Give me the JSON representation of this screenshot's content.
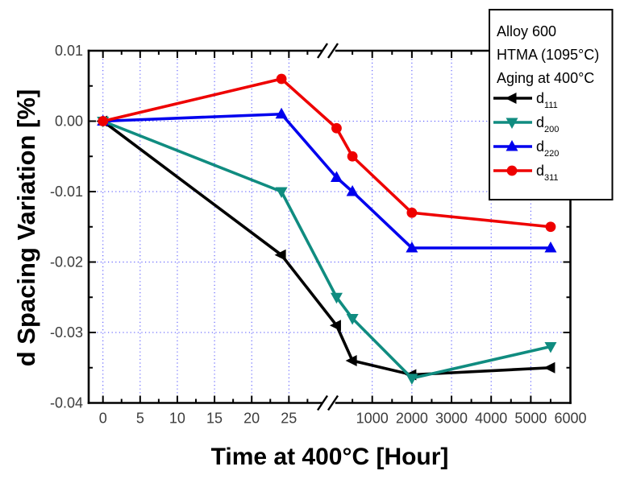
{
  "figure": {
    "background": "#ffffff",
    "frame_color": "#000000",
    "tick_label_color": "#3d3d3d"
  },
  "chart_data": {
    "type": "line",
    "title": "",
    "xlabel": "Time at 400°C [Hour]",
    "ylabel": "d Spacing Variation [%]",
    "grid": {
      "show": true,
      "color": "#3333ff",
      "style": "dotted"
    },
    "x_axis": {
      "broken": true,
      "break_between_values": [
        29,
        110
      ],
      "left_segment": {
        "range": [
          -2,
          29.4
        ],
        "major_ticks": [
          0,
          5,
          10,
          15,
          20,
          25
        ],
        "tick_labels": [
          "0",
          "5",
          "10",
          "15",
          "20",
          "25"
        ],
        "minor_ticks": [
          2.5,
          7.5,
          12.5,
          17.5,
          22.5,
          27.5
        ]
      },
      "right_segment": {
        "range": [
          110,
          6000
        ],
        "major_ticks": [
          1000,
          2000,
          3000,
          4000,
          5000,
          6000
        ],
        "tick_labels": [
          "1000",
          "2000",
          "3000",
          "4000",
          "5000",
          "6000"
        ],
        "minor_ticks": [
          500,
          1500,
          2500,
          3500,
          4500,
          5500
        ]
      }
    },
    "y_axis": {
      "range": [
        -0.04,
        0.01
      ],
      "major_ticks": [
        0.01,
        0.0,
        -0.01,
        -0.02,
        -0.03,
        -0.04
      ],
      "tick_labels": [
        "0.01",
        "0.00",
        "-0.01",
        "-0.02",
        "-0.03",
        "-0.04"
      ],
      "minor_ticks": [
        0.005,
        -0.005,
        -0.015,
        -0.025,
        -0.035
      ],
      "gridline_values": [
        0.0,
        -0.01,
        -0.02,
        -0.03
      ]
    },
    "x": [
      0,
      24,
      100,
      500,
      2000,
      5500
    ],
    "series": [
      {
        "name": "d111",
        "label_base": "d",
        "label_sub": "111",
        "color": "#000000",
        "marker": "triangle-left",
        "values": [
          0.0,
          -0.019,
          -0.029,
          -0.034,
          -0.036,
          -0.035
        ]
      },
      {
        "name": "d200",
        "label_base": "d",
        "label_sub": "200",
        "color": "#108c80",
        "marker": "triangle-down",
        "values": [
          0.0,
          -0.01,
          -0.025,
          -0.028,
          -0.0365,
          -0.032
        ]
      },
      {
        "name": "d220",
        "label_base": "d",
        "label_sub": "220",
        "color": "#0000ee",
        "marker": "triangle-up",
        "values": [
          0.0,
          0.001,
          -0.008,
          -0.01,
          -0.018,
          -0.018
        ]
      },
      {
        "name": "d311",
        "label_base": "d",
        "label_sub": "311",
        "color": "#ee0000",
        "marker": "circle",
        "values": [
          0.0,
          0.006,
          -0.001,
          -0.005,
          -0.013,
          -0.015
        ]
      }
    ],
    "legend": {
      "position": "top-right",
      "header_lines": [
        "Alloy 600",
        "HTMA (1095°C)",
        "Aging at 400°C"
      ],
      "border_color": "#000000",
      "background": "#ffffff"
    }
  }
}
